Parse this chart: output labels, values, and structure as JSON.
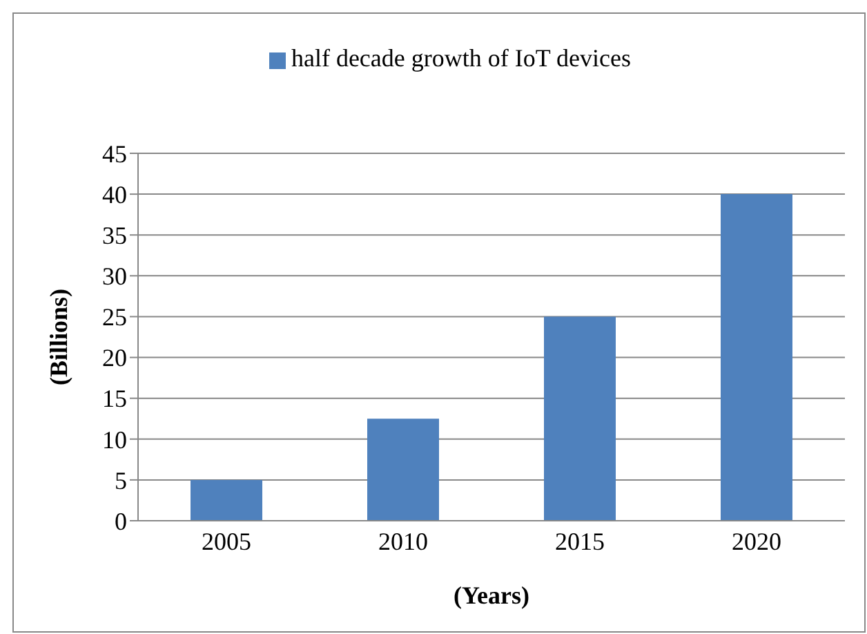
{
  "chart_data": {
    "type": "bar",
    "categories": [
      "2005",
      "2010",
      "2015",
      "2020"
    ],
    "series": [
      {
        "name": "half decade growth of IoT devices",
        "color": "#4f81bd",
        "values": [
          5,
          12.5,
          25,
          40
        ]
      }
    ],
    "xlabel": "(Years)",
    "ylabel": "(Billions)",
    "ylim": [
      0,
      45
    ],
    "yticks": [
      0,
      5,
      10,
      15,
      20,
      25,
      30,
      35,
      40,
      45
    ],
    "grid": "y",
    "legend": "top"
  }
}
